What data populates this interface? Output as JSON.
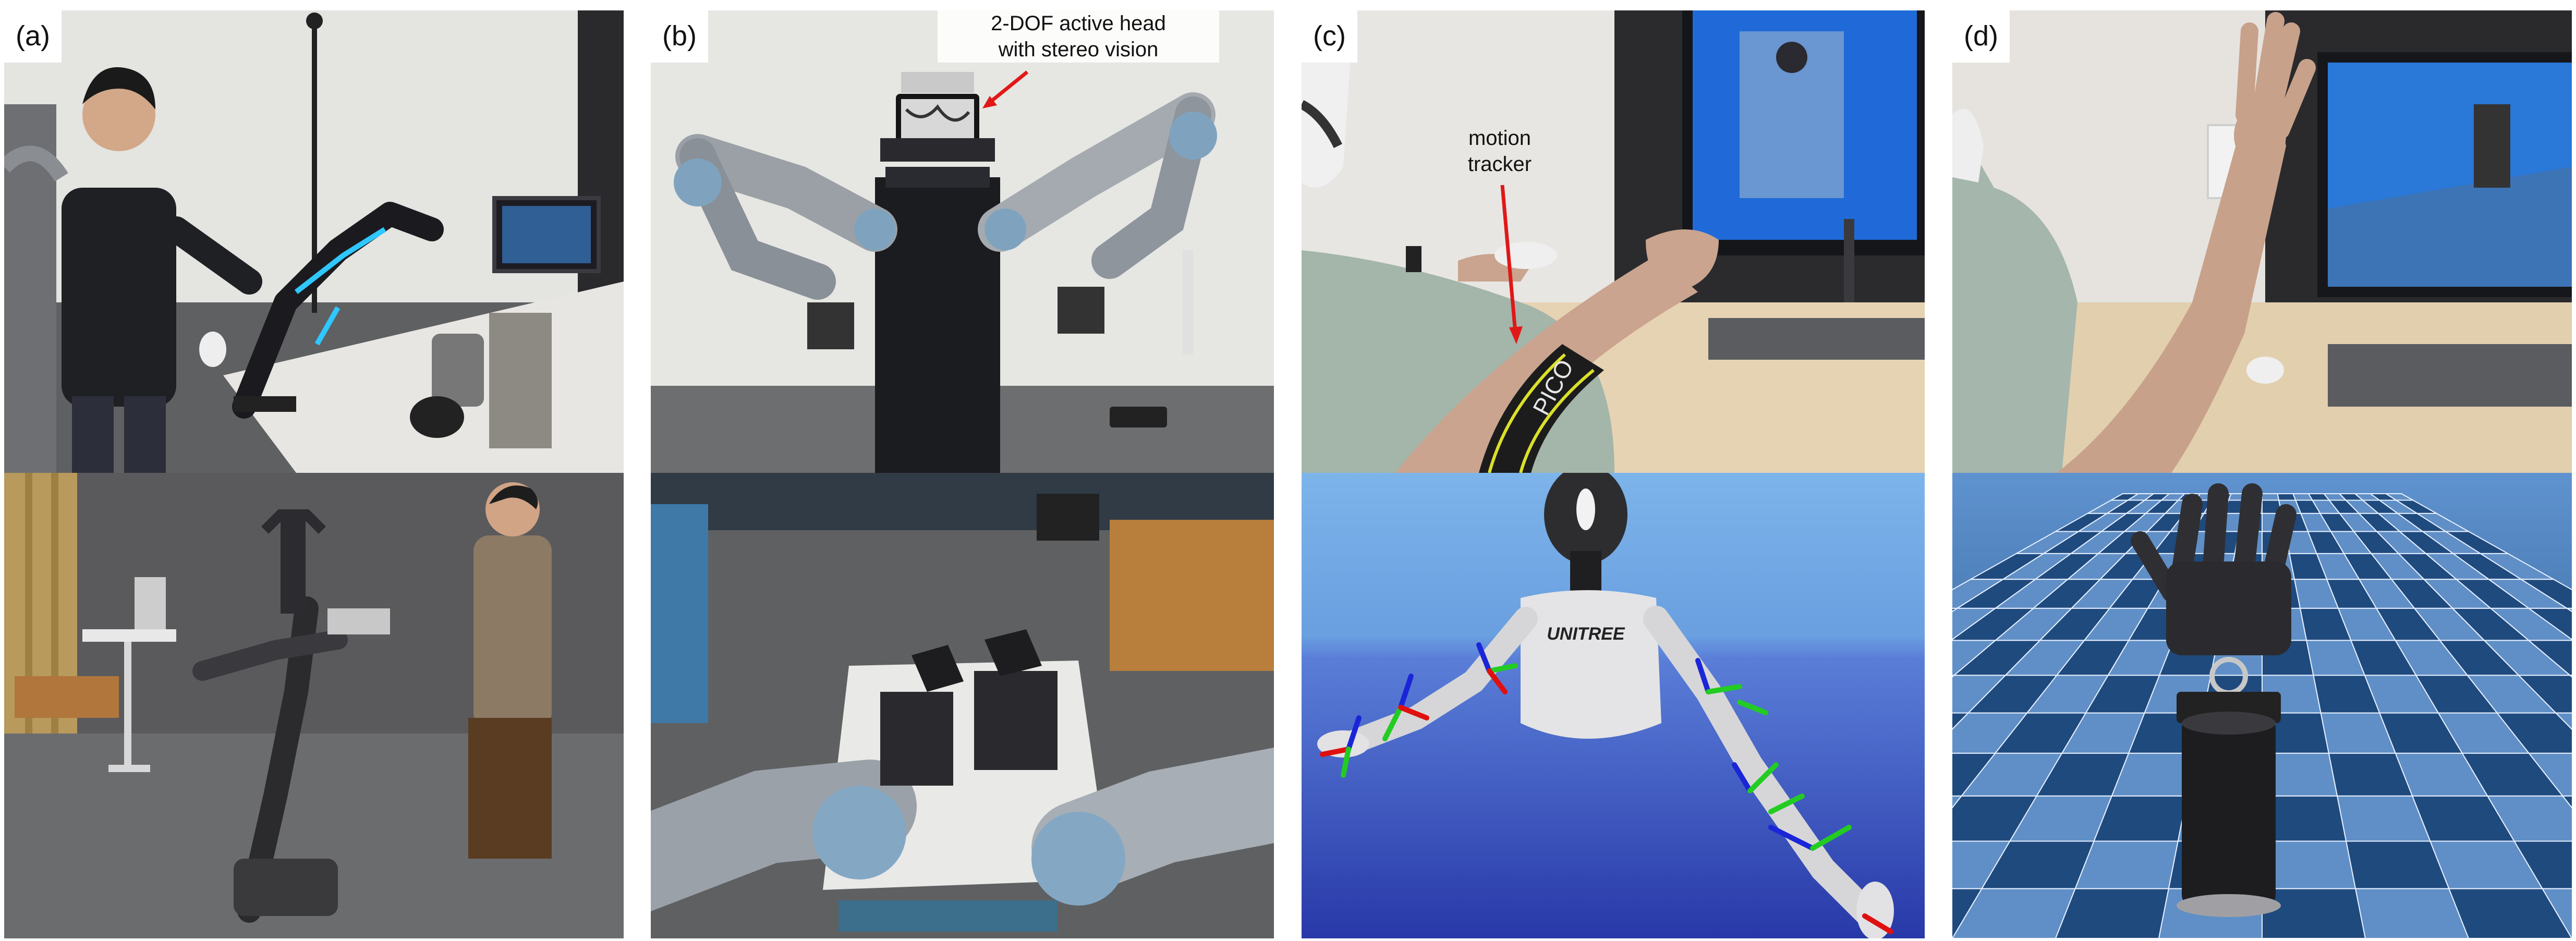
{
  "panels": [
    {
      "label": "(a)"
    },
    {
      "label": "(b)",
      "annotation": [
        "2-DOF active head",
        "with stereo vision"
      ]
    },
    {
      "label": "(c)",
      "annotation": [
        "motion",
        "tracker"
      ],
      "robot_logo_text": "UNITREE",
      "armband_text": "PICO"
    },
    {
      "label": "(d)"
    }
  ],
  "colors": {
    "arrow": "#e01818",
    "axis_red": "#e01010",
    "axis_green": "#22cc22",
    "axis_blue": "#1b25d8",
    "sim_floor_light": "#5f8fc6",
    "sim_floor_dark": "#1f4a7e",
    "sim_sky": "#6ea7e3",
    "carpet": "#5d5e60"
  }
}
